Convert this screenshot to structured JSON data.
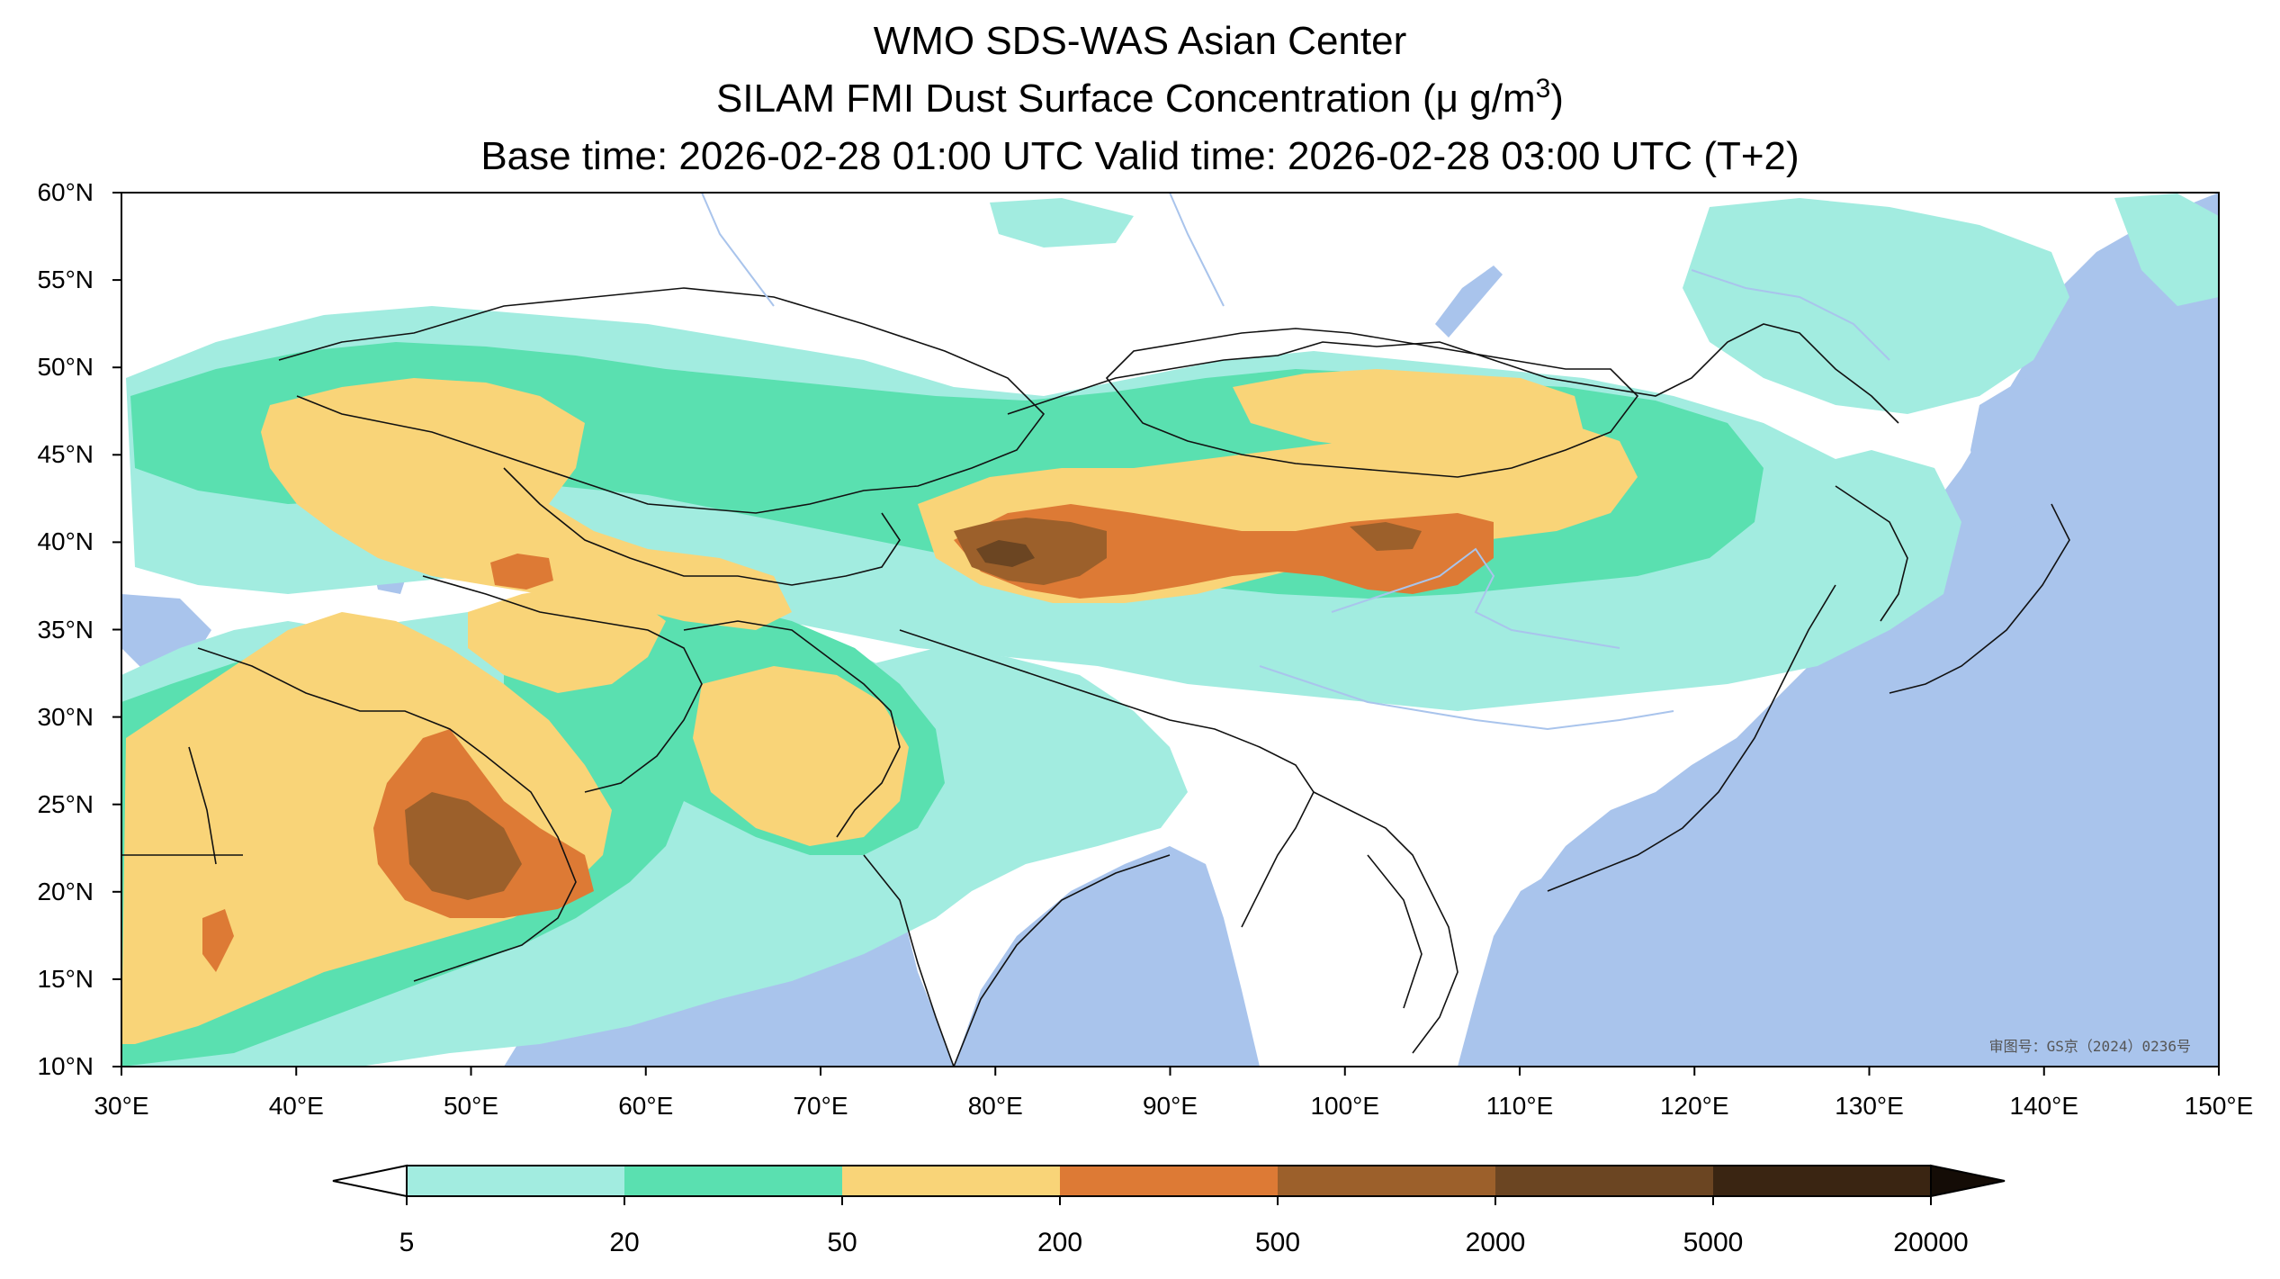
{
  "title": {
    "line1": "WMO SDS-WAS Asian Center",
    "line2_prefix": "SILAM FMI Dust Surface Concentration (",
    "line2_unit": "μ g/m",
    "line2_sup": "3",
    "line2_suffix": ")",
    "line3": "Base time: 2026-02-28 01:00 UTC Valid time: 2026-02-28 03:00 UTC (T+2)"
  },
  "map": {
    "lon_range": [
      30,
      150
    ],
    "lat_range": [
      10,
      60
    ],
    "x_ticks": [
      "30°E",
      "40°E",
      "50°E",
      "60°E",
      "70°E",
      "80°E",
      "90°E",
      "100°E",
      "110°E",
      "120°E",
      "130°E",
      "140°E",
      "150°E"
    ],
    "y_ticks": [
      "60°N",
      "55°N",
      "50°N",
      "45°N",
      "40°N",
      "35°N",
      "30°N",
      "25°N",
      "20°N",
      "15°N",
      "10°N"
    ],
    "watermark": "审图号：GS京（2024）0236号",
    "colors": {
      "ocean": "#a9c4ec",
      "land": "#ffffff",
      "border": "#111111",
      "river": "#a9c4ec"
    }
  },
  "colorbar": {
    "levels": [
      "5",
      "20",
      "50",
      "200",
      "500",
      "2000",
      "5000",
      "20000"
    ],
    "colors": [
      "#ffffff",
      "#a2ece0",
      "#5ae0b0",
      "#f9d478",
      "#dd7a35",
      "#9c602b",
      "#6b4522",
      "#3a2512",
      "#140c06"
    ]
  }
}
